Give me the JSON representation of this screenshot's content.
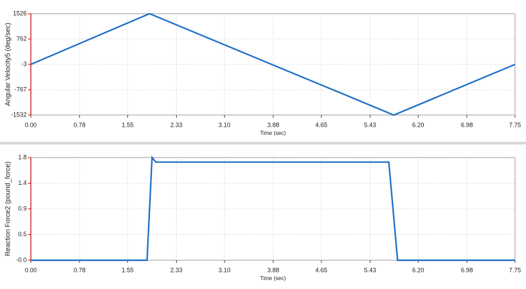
{
  "chart_data": [
    {
      "type": "line",
      "ylabel": "Angular Velocity5 (deg/sec)",
      "xlabel": "Time (sec)",
      "x": [
        0,
        1.9,
        5.81,
        7.75
      ],
      "values": [
        -3,
        1526,
        -1532,
        -3
      ],
      "color": "#1f6fc5",
      "xlim": [
        0,
        7.75
      ],
      "ylim": [
        -1532,
        1526
      ],
      "xticks": [
        {
          "value": 0,
          "label": "0.00"
        },
        0.78,
        1.55,
        2.33,
        {
          "value": 3.1,
          "label": "3.10"
        },
        3.88,
        4.65,
        5.43,
        {
          "value": 6.2,
          "label": "6.20"
        },
        6.98,
        7.75
      ],
      "yticks": [
        1526,
        762,
        -3,
        -767,
        -1532
      ],
      "grid": true
    },
    {
      "type": "line",
      "ylabel": "Reaction Force2 (pound_force)",
      "xlabel": "Time (sec)",
      "x": [
        0,
        1.86,
        1.94,
        2.0,
        5.73,
        5.87,
        7.75
      ],
      "values": [
        0,
        0,
        1.8,
        1.72,
        1.72,
        0,
        0
      ],
      "color": "#1f6fc5",
      "xlim": [
        0,
        7.75
      ],
      "ylim": [
        0,
        1.8
      ],
      "xticks": [
        {
          "value": 0,
          "label": "0.00"
        },
        0.78,
        1.55,
        2.33,
        {
          "value": 3.1,
          "label": "3.10"
        },
        3.88,
        4.65,
        5.43,
        {
          "value": 6.2,
          "label": "6.20"
        },
        6.98,
        7.75
      ],
      "yticks": [
        1.8,
        {
          "value": 1.35,
          "label": "1.4"
        },
        0.9,
        {
          "value": 0.45,
          "label": "0.5"
        },
        {
          "value": 0,
          "label": "-0.0"
        }
      ],
      "grid": true
    }
  ]
}
